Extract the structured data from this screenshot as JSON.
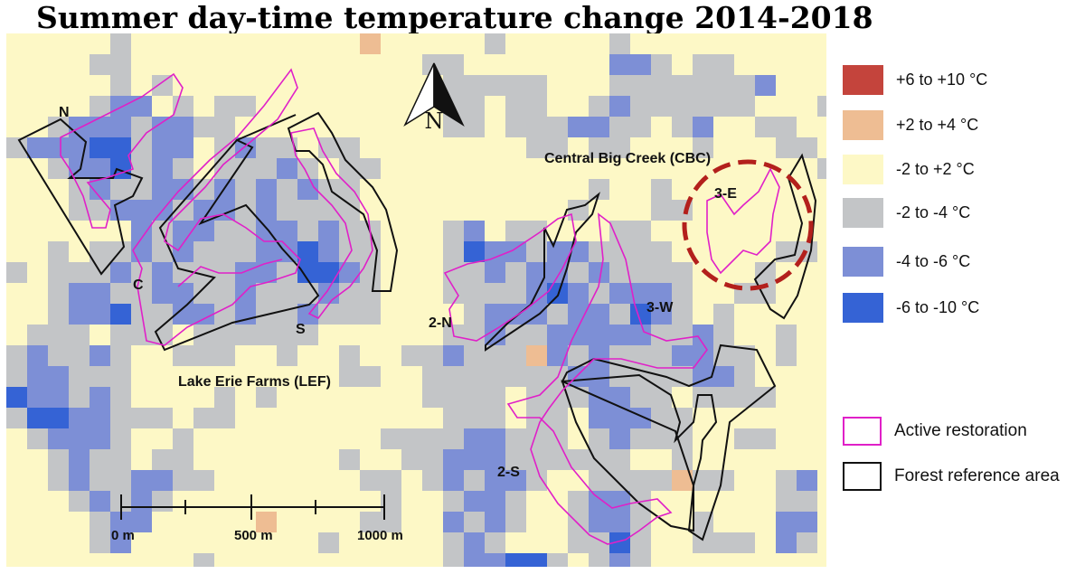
{
  "title": "Summer day-time temperature change 2014-2018",
  "colors": {
    "background": "#fdf8c6",
    "cell_gray": "#c3c5c7",
    "cell_light_blue": "#7d8fd6",
    "cell_dark_blue": "#3563d5",
    "cell_orange": "#eebd93",
    "restoration": "#e020c8",
    "forest": "#111111",
    "highlight_circle": "#b3201c"
  },
  "labels": {
    "north_arrow": "N",
    "site_n": "N",
    "site_c": "C",
    "site_s": "S",
    "site_2n": "2-N",
    "site_2s": "2-S",
    "site_3w": "3-W",
    "site_3e": "3-E",
    "lef": "Lake Erie Farms (LEF)",
    "cbc": "Central Big Creek (CBC)"
  },
  "scale_bar": {
    "label_0": "0 m",
    "label_500": "500 m",
    "label_1000": "1000 m"
  },
  "legend": {
    "items": [
      {
        "label": "+6 to +10 °C",
        "color": "#c4443c"
      },
      {
        "label": "+2 to +4 °C",
        "color": "#eebd93"
      },
      {
        "label": "-2 to +2 °C",
        "color": "#fdf8c6"
      },
      {
        "label": "-2 to -4 °C",
        "color": "#c3c5c7"
      },
      {
        "label": "-4 to -6 °C",
        "color": "#7d8fd6"
      },
      {
        "label": "-6 to -10 °C",
        "color": "#3563d5"
      }
    ],
    "active_restoration": "Active restoration",
    "forest_reference": "Forest reference area"
  }
}
